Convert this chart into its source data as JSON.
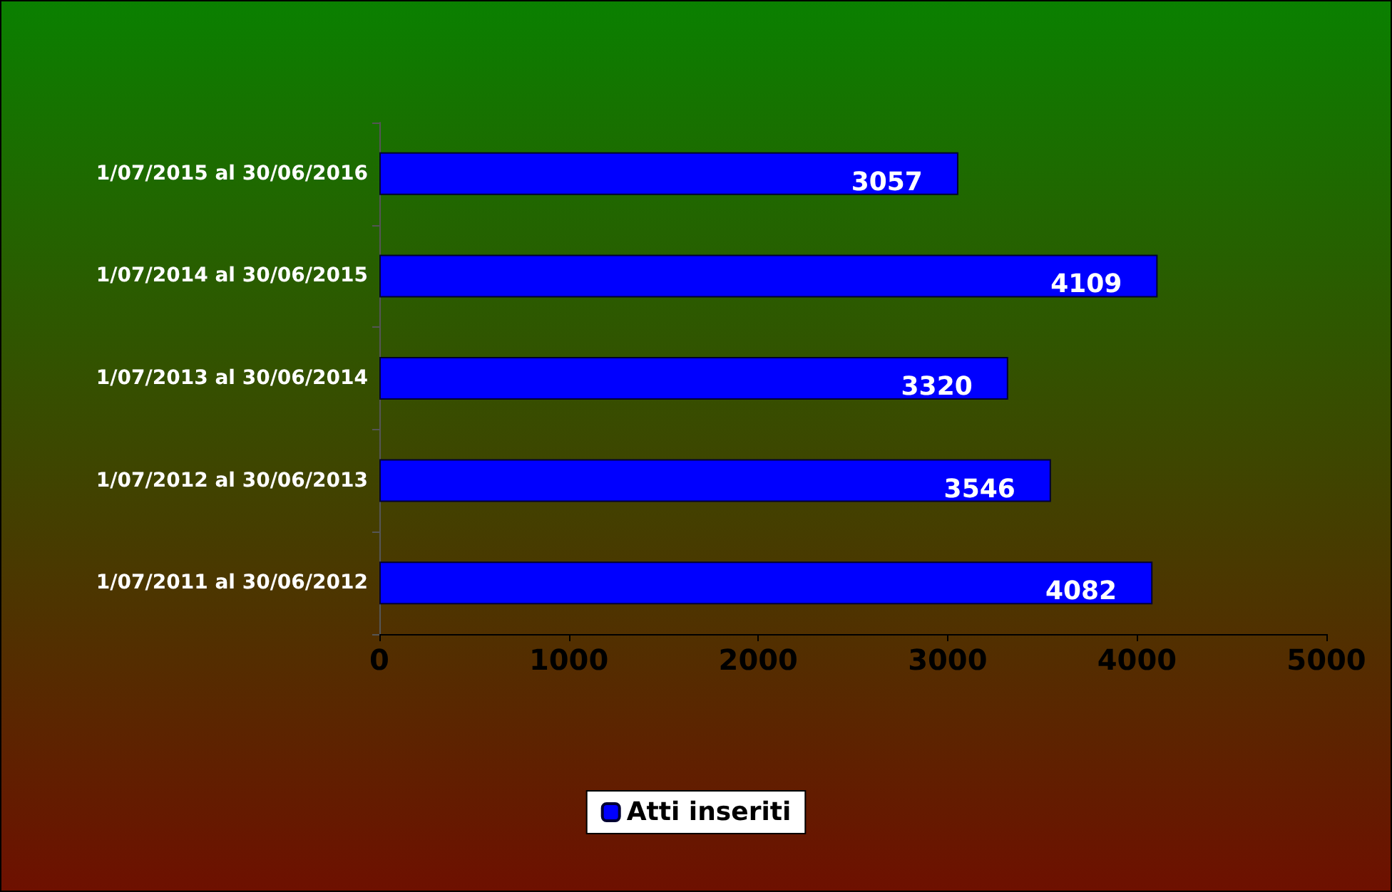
{
  "chart_data": {
    "type": "bar",
    "orientation": "horizontal",
    "categories": [
      "1/07/2015 al 30/06/2016",
      "1/07/2014 al 30/06/2015",
      "1/07/2013 al 30/06/2014",
      "1/07/2012 al 30/06/2013",
      "1/07/2011 al 30/06/2012"
    ],
    "series": [
      {
        "name": "Atti inseriti",
        "color": "#0000ff",
        "values": [
          3057,
          4109,
          3320,
          3546,
          4082
        ]
      }
    ],
    "xlim": [
      0,
      5000
    ],
    "xticks": [
      0,
      1000,
      2000,
      3000,
      4000,
      5000
    ],
    "grid": false,
    "legend": "bottom",
    "data_labels": true
  }
}
